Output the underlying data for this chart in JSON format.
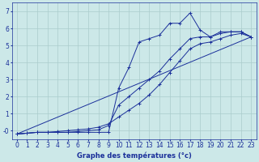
{
  "title": "",
  "xlabel": "Graphe des températures (°c)",
  "ylabel": "",
  "bg_color": "#cce8e8",
  "line_color": "#1a2f9a",
  "xlim": [
    -0.5,
    23.5
  ],
  "ylim": [
    -0.5,
    7.5
  ],
  "xticks": [
    0,
    1,
    2,
    3,
    4,
    5,
    6,
    7,
    8,
    9,
    10,
    11,
    12,
    13,
    14,
    15,
    16,
    17,
    18,
    19,
    20,
    21,
    22,
    23
  ],
  "xtick_labels": [
    "0",
    "1",
    "2",
    "3",
    "4",
    "5",
    "6",
    "7",
    "8",
    "9",
    "10",
    "11",
    "12",
    "13",
    "14",
    "15",
    "16",
    "17",
    "18",
    "19",
    "20",
    "21",
    "22",
    "23"
  ],
  "yticks": [
    0,
    1,
    2,
    3,
    4,
    5,
    6,
    7
  ],
  "ytick_labels": [
    "-0",
    "1",
    "2",
    "3",
    "4",
    "5",
    "6",
    "7"
  ],
  "line1_x": [
    0,
    1,
    2,
    3,
    4,
    5,
    6,
    7,
    8,
    9,
    10,
    11,
    12,
    13,
    14,
    15,
    16,
    17,
    18,
    19,
    20,
    21,
    22,
    23
  ],
  "line1_y": [
    -0.2,
    -0.15,
    -0.1,
    -0.1,
    -0.1,
    -0.1,
    -0.1,
    -0.1,
    -0.1,
    -0.1,
    2.5,
    3.7,
    5.2,
    5.4,
    5.6,
    6.3,
    6.3,
    6.9,
    5.9,
    5.5,
    5.8,
    5.8,
    5.8,
    5.5
  ],
  "line2_x": [
    0,
    1,
    2,
    3,
    4,
    5,
    6,
    7,
    8,
    9,
    10,
    11,
    12,
    13,
    14,
    15,
    16,
    17,
    18,
    19,
    20,
    21,
    22,
    23
  ],
  "line2_y": [
    -0.2,
    -0.15,
    -0.1,
    -0.1,
    -0.1,
    -0.1,
    -0.05,
    0.0,
    0.05,
    0.3,
    1.5,
    2.0,
    2.5,
    3.0,
    3.5,
    4.2,
    4.8,
    5.4,
    5.5,
    5.5,
    5.7,
    5.8,
    5.8,
    5.5
  ],
  "line3_x": [
    0,
    1,
    2,
    3,
    4,
    5,
    6,
    7,
    8,
    9,
    10,
    11,
    12,
    13,
    14,
    15,
    16,
    17,
    18,
    19,
    20,
    21,
    22,
    23
  ],
  "line3_y": [
    -0.2,
    -0.15,
    -0.1,
    -0.1,
    -0.05,
    0.0,
    0.05,
    0.1,
    0.2,
    0.4,
    0.8,
    1.2,
    1.6,
    2.1,
    2.7,
    3.4,
    4.1,
    4.8,
    5.1,
    5.2,
    5.4,
    5.6,
    5.7,
    5.5
  ],
  "line4_x": [
    0,
    23
  ],
  "line4_y": [
    -0.2,
    5.5
  ],
  "grid_color": "#aacccc",
  "font_size": 6,
  "tick_labelsize": 5.5
}
